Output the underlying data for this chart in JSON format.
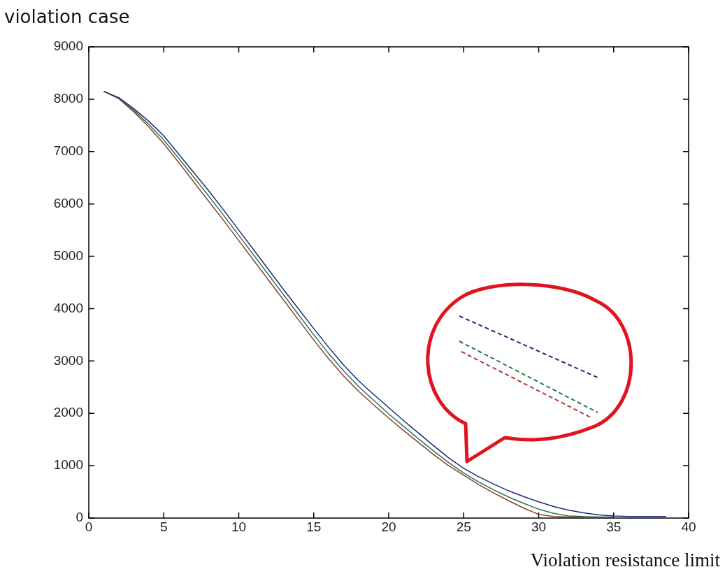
{
  "chart_data": {
    "type": "line",
    "ylabel": "violation case",
    "xlabel": "Violation resistance limit",
    "xlim": [
      0,
      40
    ],
    "xticks": [
      0,
      5,
      10,
      15,
      20,
      25,
      30,
      35,
      40
    ],
    "ylim": [
      0,
      9000
    ],
    "yticks": [
      0,
      1000,
      2000,
      3000,
      4000,
      5000,
      6000,
      7000,
      8000,
      9000
    ],
    "grid": false,
    "legend": false,
    "marker": "none",
    "line_style": "solid",
    "series": [
      {
        "color": "#1c2a78",
        "x": [
          1,
          2,
          3,
          4,
          5,
          6,
          7,
          8,
          9,
          10,
          11,
          12,
          13,
          14,
          15,
          16,
          17,
          18,
          19,
          20,
          21,
          22,
          23,
          24,
          25,
          26,
          27,
          28,
          29,
          30,
          31,
          32,
          33,
          34,
          35,
          36,
          37,
          38.5
        ],
        "values": [
          8150,
          8030,
          7820,
          7580,
          7300,
          6950,
          6600,
          6250,
          5880,
          5500,
          5120,
          4740,
          4360,
          3990,
          3620,
          3260,
          2920,
          2620,
          2360,
          2110,
          1860,
          1620,
          1380,
          1150,
          950,
          790,
          650,
          520,
          410,
          310,
          220,
          150,
          100,
          60,
          40,
          30,
          30,
          30
        ]
      },
      {
        "color": "#2e7550",
        "x": [
          1,
          2,
          3,
          4,
          5,
          6,
          7,
          8,
          9,
          10,
          11,
          12,
          13,
          14,
          15,
          16,
          17,
          18,
          19,
          20,
          21,
          22,
          23,
          24,
          25,
          26,
          27,
          28,
          29,
          30,
          31,
          32,
          33,
          34,
          35
        ],
        "values": [
          8150,
          8020,
          7790,
          7520,
          7220,
          6870,
          6510,
          6150,
          5780,
          5400,
          5020,
          4640,
          4260,
          3880,
          3500,
          3140,
          2810,
          2510,
          2250,
          1990,
          1750,
          1510,
          1280,
          1060,
          860,
          690,
          540,
          400,
          280,
          170,
          90,
          40,
          30,
          20,
          20
        ]
      },
      {
        "color": "#8b3f2e",
        "x": [
          1,
          2,
          3,
          4,
          5,
          6,
          7,
          8,
          9,
          10,
          11,
          12,
          13,
          14,
          15,
          16,
          17,
          18,
          19,
          20,
          21,
          22,
          23,
          24,
          25,
          26,
          27,
          28,
          29,
          30,
          31,
          32,
          33
        ],
        "values": [
          8150,
          8010,
          7760,
          7470,
          7150,
          6790,
          6420,
          6050,
          5680,
          5300,
          4920,
          4540,
          4160,
          3780,
          3400,
          3040,
          2710,
          2420,
          2160,
          1910,
          1670,
          1440,
          1210,
          1000,
          820,
          640,
          480,
          330,
          190,
          70,
          30,
          20,
          20
        ]
      }
    ]
  }
}
